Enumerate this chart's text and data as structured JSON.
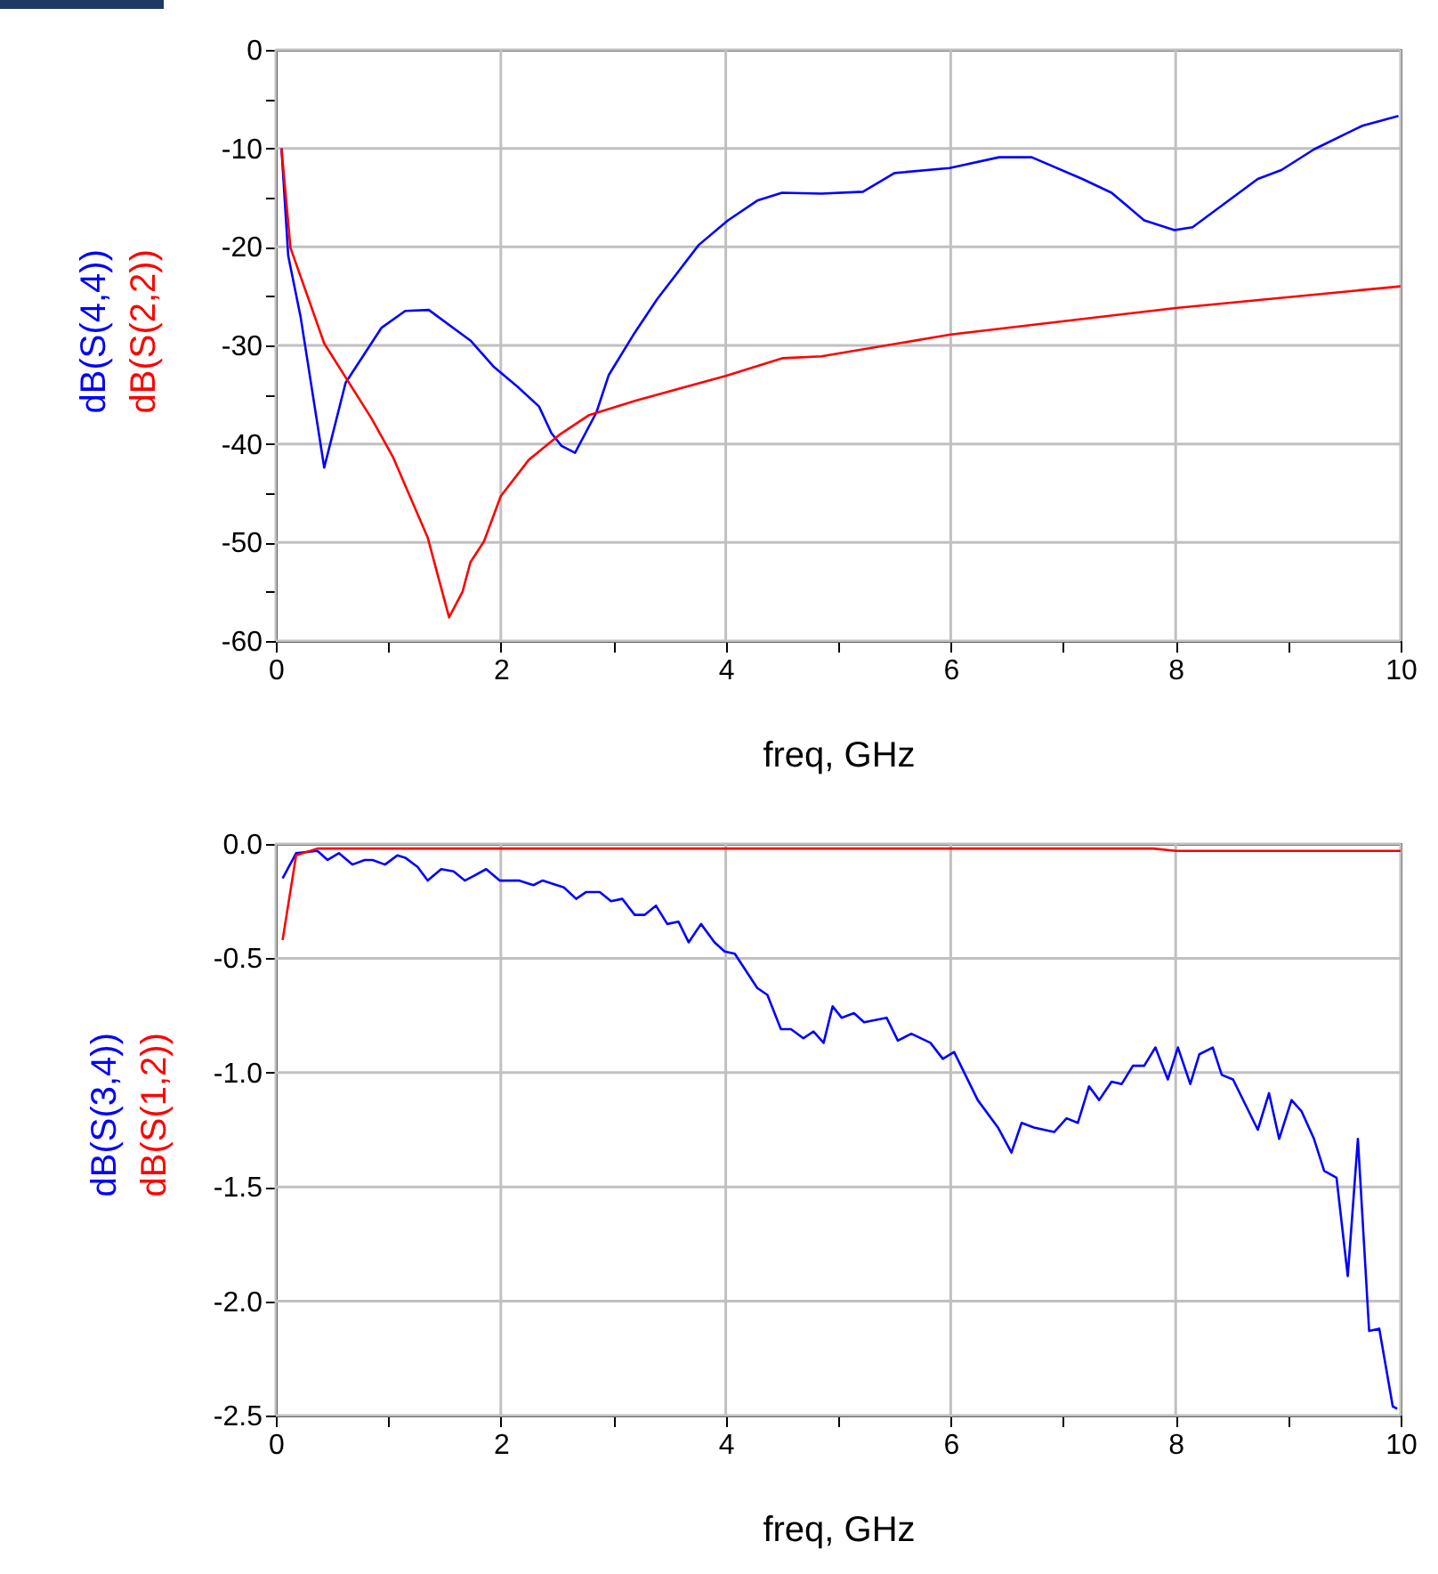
{
  "chart_data": [
    {
      "type": "line",
      "xlabel": "freq, GHz",
      "xlim": [
        0,
        10
      ],
      "ylim": [
        -60,
        0
      ],
      "xticks": [
        0,
        {
          "value": 1,
          "label": null
        },
        2,
        {
          "value": 3,
          "label": null
        },
        4,
        {
          "value": 5,
          "label": null
        },
        6,
        {
          "value": 7,
          "label": null
        },
        8,
        {
          "value": 9,
          "label": null
        },
        10
      ],
      "yticks": [
        -60,
        {
          "value": -55,
          "label": null
        },
        -50,
        {
          "value": -45,
          "label": null
        },
        -40,
        {
          "value": -35,
          "label": null
        },
        -30,
        {
          "value": -25,
          "label": null
        },
        -20,
        {
          "value": -15,
          "label": null
        },
        -10,
        {
          "value": -5,
          "label": null
        },
        0
      ],
      "grid": true,
      "series": [
        {
          "name": "dB(S(4,4))",
          "color": "#0000ff",
          "x": [
            0.05,
            0.11,
            0.22,
            0.43,
            0.62,
            0.94,
            1.15,
            1.36,
            1.73,
            1.94,
            2.15,
            2.34,
            2.45,
            2.54,
            2.66,
            2.85,
            2.96,
            3.18,
            3.39,
            3.76,
            4.02,
            4.28,
            4.5,
            4.85,
            5.22,
            5.5,
            5.99,
            6.43,
            6.72,
            7.17,
            7.43,
            7.72,
            7.99,
            8.15,
            8.73,
            8.94,
            9.23,
            9.66,
            9.98
          ],
          "values": [
            -10,
            -20.9,
            -27.1,
            -42.4,
            -33.8,
            -28.2,
            -26.5,
            -26.4,
            -29.5,
            -32.2,
            -34.2,
            -36.2,
            -38.9,
            -40.2,
            -40.9,
            -36.8,
            -33,
            -28.9,
            -25.3,
            -19.8,
            -17.3,
            -15.3,
            -14.5,
            -14.6,
            -14.4,
            -12.5,
            -12,
            -10.9,
            -10.9,
            -13.1,
            -14.5,
            -17.3,
            -18.3,
            -18,
            -13.1,
            -12.2,
            -10.1,
            -7.7,
            -6.7
          ]
        },
        {
          "name": "dB(S(2,2))",
          "color": "#ff0000",
          "x": [
            0.05,
            0.13,
            0.43,
            0.85,
            1.04,
            1.35,
            1.54,
            1.66,
            1.73,
            1.85,
            2,
            2.25,
            2.53,
            2.78,
            3.2,
            4,
            4.5,
            4.85,
            6,
            8,
            10
          ],
          "values": [
            -10,
            -20.1,
            -29.8,
            -37.4,
            -41.3,
            -49.5,
            -57.6,
            -55,
            -52,
            -49.9,
            -45.3,
            -41.6,
            -39,
            -37.1,
            -35.6,
            -33.1,
            -31.3,
            -31.1,
            -28.9,
            -26.2,
            -24
          ]
        }
      ]
    },
    {
      "type": "line",
      "xlabel": "freq, GHz",
      "xlim": [
        0,
        10
      ],
      "ylim": [
        -2.5,
        0
      ],
      "xticks": [
        0,
        {
          "value": 1,
          "label": null
        },
        2,
        {
          "value": 3,
          "label": null
        },
        4,
        {
          "value": 5,
          "label": null
        },
        6,
        {
          "value": 7,
          "label": null
        },
        8,
        {
          "value": 9,
          "label": null
        },
        10
      ],
      "yticks": [
        {
          "value": -2.5,
          "label": "-2.5"
        },
        {
          "value": -2,
          "label": "-2.0"
        },
        {
          "value": -1.5,
          "label": "-1.5"
        },
        {
          "value": -1,
          "label": "-1.0"
        },
        {
          "value": -0.5,
          "label": "-0.5"
        },
        {
          "value": 0,
          "label": "0.0"
        }
      ],
      "grid": true,
      "series": [
        {
          "name": "dB(S(3,4))",
          "color": "#0000ff",
          "x": [
            0.06,
            0.18,
            0.37,
            0.46,
            0.56,
            0.68,
            0.79,
            0.86,
            0.97,
            1.08,
            1.15,
            1.26,
            1.35,
            1.47,
            1.58,
            1.68,
            1.76,
            1.87,
            1.99,
            2.16,
            2.29,
            2.37,
            2.56,
            2.67,
            2.76,
            2.88,
            2.98,
            3.08,
            3.19,
            3.28,
            3.38,
            3.48,
            3.58,
            3.67,
            3.78,
            3.9,
            3.99,
            4.08,
            4.28,
            4.37,
            4.49,
            4.58,
            4.69,
            4.78,
            4.87,
            4.95,
            5.03,
            5.14,
            5.23,
            5.43,
            5.53,
            5.65,
            5.82,
            5.93,
            6.03,
            6.24,
            6.42,
            6.54,
            6.63,
            6.74,
            6.92,
            7.03,
            7.13,
            7.23,
            7.32,
            7.43,
            7.52,
            7.62,
            7.72,
            7.82,
            7.93,
            8.02,
            8.13,
            8.21,
            8.33,
            8.41,
            8.51,
            8.62,
            8.73,
            8.83,
            8.92,
            9.03,
            9.12,
            9.23,
            9.32,
            9.43,
            9.53,
            9.62,
            9.72,
            9.81,
            9.93,
            9.97
          ],
          "values": [
            -0.15,
            -0.04,
            -0.03,
            -0.07,
            -0.04,
            -0.09,
            -0.07,
            -0.07,
            -0.09,
            -0.05,
            -0.06,
            -0.1,
            -0.16,
            -0.11,
            -0.12,
            -0.16,
            -0.14,
            -0.11,
            -0.16,
            -0.16,
            -0.18,
            -0.16,
            -0.19,
            -0.24,
            -0.21,
            -0.21,
            -0.25,
            -0.24,
            -0.31,
            -0.31,
            -0.27,
            -0.35,
            -0.34,
            -0.43,
            -0.35,
            -0.43,
            -0.47,
            -0.48,
            -0.63,
            -0.66,
            -0.81,
            -0.81,
            -0.85,
            -0.82,
            -0.87,
            -0.71,
            -0.76,
            -0.74,
            -0.78,
            -0.76,
            -0.86,
            -0.83,
            -0.87,
            -0.94,
            -0.91,
            -1.12,
            -1.24,
            -1.35,
            -1.22,
            -1.24,
            -1.26,
            -1.2,
            -1.22,
            -1.06,
            -1.12,
            -1.04,
            -1.05,
            -0.97,
            -0.97,
            -0.89,
            -1.03,
            -0.89,
            -1.05,
            -0.92,
            -0.89,
            -1.01,
            -1.03,
            -1.14,
            -1.25,
            -1.09,
            -1.29,
            -1.12,
            -1.17,
            -1.29,
            -1.43,
            -1.46,
            -1.89,
            -1.29,
            -2.13,
            -2.12,
            -2.46,
            -2.47
          ]
        },
        {
          "name": "dB(S(1,2))",
          "color": "#ff0000",
          "x": [
            0.06,
            0.18,
            0.37,
            7.8,
            8,
            10
          ],
          "values": [
            -0.42,
            -0.05,
            -0.02,
            -0.02,
            -0.03,
            -0.03
          ]
        }
      ]
    }
  ]
}
